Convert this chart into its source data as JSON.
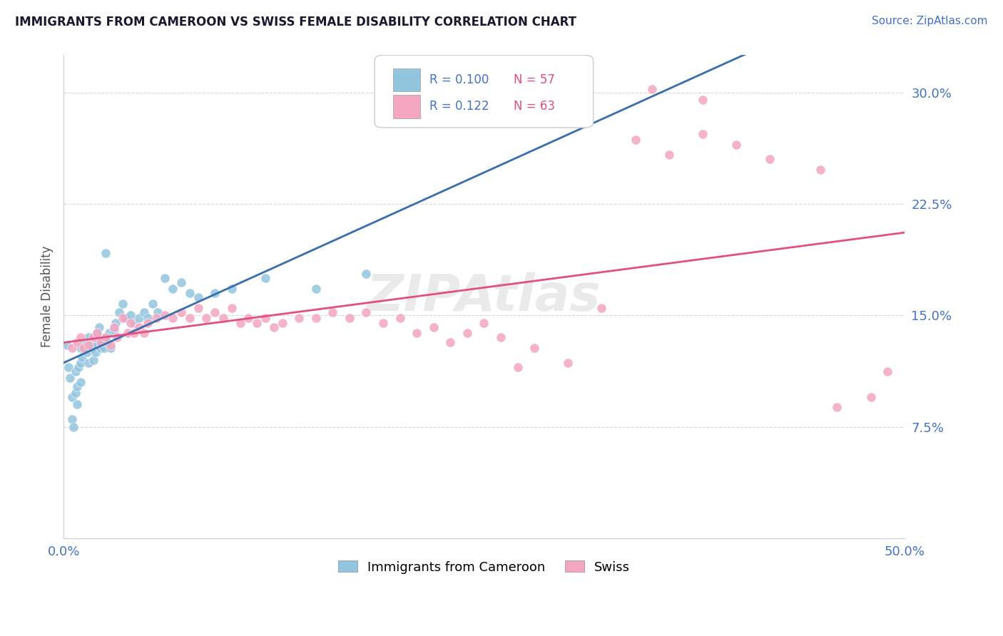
{
  "title": "IMMIGRANTS FROM CAMEROON VS SWISS FEMALE DISABILITY CORRELATION CHART",
  "source_text": "Source: ZipAtlas.com",
  "ylabel": "Female Disability",
  "x_min": 0.0,
  "x_max": 0.5,
  "y_min": 0.0,
  "y_max": 0.325,
  "y_ticks": [
    0.075,
    0.15,
    0.225,
    0.3
  ],
  "y_tick_labels": [
    "7.5%",
    "15.0%",
    "22.5%",
    "30.0%"
  ],
  "x_ticks": [
    0.0,
    0.5
  ],
  "x_tick_labels": [
    "0.0%",
    "50.0%"
  ],
  "legend_r1": "R = 0.100",
  "legend_n1": "N = 57",
  "legend_r2": "R = 0.122",
  "legend_n2": "N = 63",
  "color_blue": "#92c5de",
  "color_pink": "#f4a6c0",
  "trend_blue_solid": "#3a6fad",
  "trend_gray_dash": "#aaaaaa",
  "trend_pink_solid": "#e05080",
  "background_color": "#ffffff",
  "blue_x": [
    0.002,
    0.003,
    0.004,
    0.005,
    0.005,
    0.006,
    0.007,
    0.007,
    0.008,
    0.008,
    0.009,
    0.01,
    0.01,
    0.01,
    0.011,
    0.012,
    0.013,
    0.014,
    0.015,
    0.015,
    0.016,
    0.017,
    0.018,
    0.019,
    0.02,
    0.02,
    0.021,
    0.022,
    0.023,
    0.024,
    0.025,
    0.026,
    0.027,
    0.028,
    0.03,
    0.031,
    0.033,
    0.035,
    0.037,
    0.04,
    0.042,
    0.045,
    0.048,
    0.05,
    0.053,
    0.056,
    0.06,
    0.065,
    0.07,
    0.075,
    0.08,
    0.09,
    0.1,
    0.12,
    0.15,
    0.18,
    0.025
  ],
  "blue_y": [
    0.13,
    0.115,
    0.108,
    0.095,
    0.08,
    0.075,
    0.098,
    0.112,
    0.102,
    0.09,
    0.115,
    0.128,
    0.118,
    0.105,
    0.122,
    0.132,
    0.128,
    0.125,
    0.135,
    0.118,
    0.13,
    0.128,
    0.12,
    0.125,
    0.138,
    0.13,
    0.142,
    0.128,
    0.132,
    0.128,
    0.135,
    0.132,
    0.138,
    0.128,
    0.14,
    0.145,
    0.152,
    0.158,
    0.148,
    0.15,
    0.145,
    0.148,
    0.152,
    0.148,
    0.158,
    0.152,
    0.175,
    0.168,
    0.172,
    0.165,
    0.162,
    0.165,
    0.168,
    0.175,
    0.168,
    0.178,
    0.192
  ],
  "pink_x": [
    0.005,
    0.008,
    0.01,
    0.012,
    0.015,
    0.018,
    0.02,
    0.022,
    0.025,
    0.028,
    0.03,
    0.032,
    0.035,
    0.038,
    0.04,
    0.042,
    0.045,
    0.048,
    0.05,
    0.055,
    0.06,
    0.065,
    0.07,
    0.075,
    0.08,
    0.085,
    0.09,
    0.095,
    0.1,
    0.105,
    0.11,
    0.115,
    0.12,
    0.125,
    0.13,
    0.14,
    0.15,
    0.16,
    0.17,
    0.18,
    0.19,
    0.2,
    0.21,
    0.22,
    0.23,
    0.24,
    0.25,
    0.26,
    0.27,
    0.28,
    0.3,
    0.32,
    0.34,
    0.36,
    0.38,
    0.4,
    0.42,
    0.45,
    0.48,
    0.49,
    0.35,
    0.38,
    0.46
  ],
  "pink_y": [
    0.128,
    0.132,
    0.135,
    0.128,
    0.13,
    0.135,
    0.138,
    0.132,
    0.135,
    0.13,
    0.142,
    0.135,
    0.148,
    0.138,
    0.145,
    0.138,
    0.142,
    0.138,
    0.145,
    0.148,
    0.15,
    0.148,
    0.152,
    0.148,
    0.155,
    0.148,
    0.152,
    0.148,
    0.155,
    0.145,
    0.148,
    0.145,
    0.148,
    0.142,
    0.145,
    0.148,
    0.148,
    0.152,
    0.148,
    0.152,
    0.145,
    0.148,
    0.138,
    0.142,
    0.132,
    0.138,
    0.145,
    0.135,
    0.115,
    0.128,
    0.118,
    0.155,
    0.268,
    0.258,
    0.272,
    0.265,
    0.255,
    0.248,
    0.095,
    0.112,
    0.302,
    0.295,
    0.088
  ]
}
